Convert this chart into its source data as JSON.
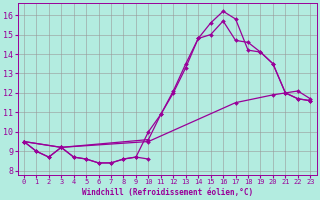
{
  "xlabel": "Windchill (Refroidissement éolien,°C)",
  "background_color": "#b3ece0",
  "grid_color": "#999999",
  "line_color": "#990099",
  "xlim": [
    -0.5,
    23.5
  ],
  "ylim": [
    7.8,
    16.6
  ],
  "xticks": [
    0,
    1,
    2,
    3,
    4,
    5,
    6,
    7,
    8,
    9,
    10,
    11,
    12,
    13,
    14,
    15,
    16,
    17,
    18,
    19,
    20,
    21,
    22,
    23
  ],
  "yticks": [
    8,
    9,
    10,
    11,
    12,
    13,
    14,
    15,
    16
  ],
  "series": [
    {
      "x": [
        0,
        1,
        2,
        3,
        4,
        5,
        6,
        7,
        8,
        9,
        10,
        11,
        12,
        13,
        14,
        15,
        16,
        17,
        18,
        19,
        20,
        21,
        22,
        23
      ],
      "y": [
        9.5,
        9.0,
        8.7,
        9.2,
        8.7,
        8.6,
        8.4,
        8.4,
        8.6,
        8.7,
        10.0,
        10.9,
        12.1,
        13.5,
        14.8,
        15.6,
        16.2,
        15.8,
        14.2,
        14.1,
        13.5,
        12.0,
        11.7,
        11.6
      ]
    },
    {
      "x": [
        0,
        3,
        10,
        17,
        20,
        21,
        22,
        23
      ],
      "y": [
        9.5,
        9.2,
        9.5,
        11.5,
        11.9,
        12.0,
        12.1,
        11.7
      ]
    },
    {
      "x": [
        0,
        3,
        10,
        11,
        12,
        13,
        14,
        15,
        16,
        17,
        18,
        19,
        20,
        21,
        22,
        23
      ],
      "y": [
        9.5,
        9.2,
        9.6,
        10.9,
        12.0,
        13.3,
        14.8,
        15.0,
        15.7,
        14.7,
        14.6,
        14.1,
        13.5,
        12.0,
        11.7,
        11.6
      ]
    },
    {
      "x": [
        0,
        1,
        2,
        3,
        4,
        5,
        6,
        7,
        8,
        9,
        10
      ],
      "y": [
        9.5,
        9.0,
        8.7,
        9.2,
        8.7,
        8.6,
        8.4,
        8.4,
        8.6,
        8.7,
        8.6
      ]
    }
  ]
}
